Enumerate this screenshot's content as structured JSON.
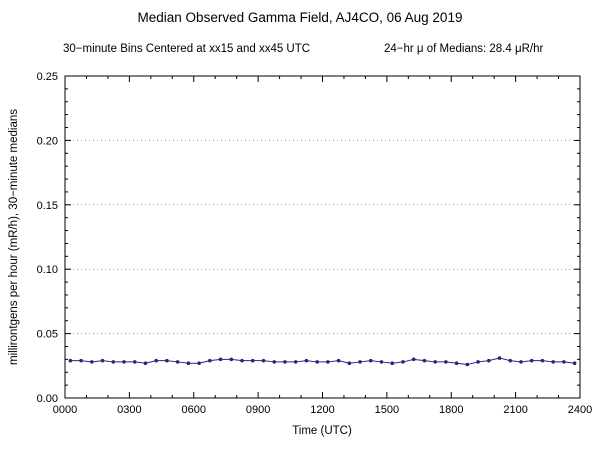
{
  "header": {
    "title": "Median Observed Gamma Field, AJ4CO, 06 Aug 2019",
    "subtitle_bins": "30−minute Bins Centered at xx15 and xx45 UTC",
    "subtitle_mean": "24−hr μ of Medians: 28.4 μR/hr"
  },
  "chart_data": {
    "type": "line",
    "title": "Median Observed Gamma Field, AJ4CO, 06 Aug 2019",
    "xlabel": "Time (UTC)",
    "ylabel": "millirontgens per hour (mR/h), 30−minute medians",
    "xlim": [
      0,
      24
    ],
    "ylim": [
      0,
      0.25
    ],
    "x_major_ticks": [
      0,
      3,
      6,
      9,
      12,
      15,
      18,
      21,
      24
    ],
    "x_tick_labels": [
      "0000",
      "0300",
      "0600",
      "0900",
      "1200",
      "1500",
      "1800",
      "2100",
      "2400"
    ],
    "x_minor_step": 1,
    "y_major_ticks": [
      0,
      0.05,
      0.1,
      0.15,
      0.2,
      0.25
    ],
    "y_tick_labels": [
      "0.00",
      "0.05",
      "0.10",
      "0.15",
      "0.20",
      "0.25"
    ],
    "y_minor_step": 0.01,
    "grid": "horizontal-dotted",
    "grid_color": "#999999",
    "legend": "none",
    "line_color": "#26267f",
    "marker": "dot",
    "marker_color": "#26267f",
    "mean_of_medians_uR_hr": 28.4,
    "x": [
      0.25,
      0.75,
      1.25,
      1.75,
      2.25,
      2.75,
      3.25,
      3.75,
      4.25,
      4.75,
      5.25,
      5.75,
      6.25,
      6.75,
      7.25,
      7.75,
      8.25,
      8.75,
      9.25,
      9.75,
      10.25,
      10.75,
      11.25,
      11.75,
      12.25,
      12.75,
      13.25,
      13.75,
      14.25,
      14.75,
      15.25,
      15.75,
      16.25,
      16.75,
      17.25,
      17.75,
      18.25,
      18.75,
      19.25,
      19.75,
      20.25,
      20.75,
      21.25,
      21.75,
      22.25,
      22.75,
      23.25,
      23.75
    ],
    "y": [
      0.029,
      0.029,
      0.028,
      0.029,
      0.028,
      0.028,
      0.028,
      0.027,
      0.029,
      0.029,
      0.028,
      0.027,
      0.027,
      0.029,
      0.03,
      0.03,
      0.029,
      0.029,
      0.029,
      0.028,
      0.028,
      0.028,
      0.029,
      0.028,
      0.028,
      0.029,
      0.027,
      0.028,
      0.029,
      0.028,
      0.027,
      0.028,
      0.03,
      0.029,
      0.028,
      0.028,
      0.027,
      0.026,
      0.028,
      0.029,
      0.031,
      0.029,
      0.028,
      0.029,
      0.029,
      0.028,
      0.028,
      0.027
    ]
  }
}
